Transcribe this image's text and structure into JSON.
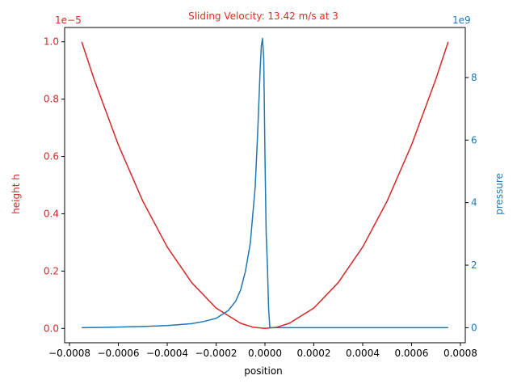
{
  "chart_data": {
    "type": "line",
    "title": "Sliding Velocity: 13.42 m/s at 3",
    "xlabel": "position",
    "ylabel_left": "height h",
    "ylabel_right": "pressure",
    "left_axis_multiplier": "1e−5",
    "right_axis_multiplier": "1e9",
    "xlim": [
      -0.00082,
      0.00082
    ],
    "ylim_left": [
      -0.05,
      1.05
    ],
    "ylim_right": [
      -0.48,
      9.6
    ],
    "x_ticks": [
      -0.0008,
      -0.0006,
      -0.0004,
      -0.0002,
      0.0,
      0.0002,
      0.0004,
      0.0006,
      0.0008
    ],
    "x_tick_labels": [
      "−0.0008",
      "−0.0006",
      "−0.0004",
      "−0.0002",
      "0.0000",
      "0.0002",
      "0.0004",
      "0.0006",
      "0.0008"
    ],
    "y_left_ticks": [
      0.0,
      0.2,
      0.4,
      0.6,
      0.8,
      1.0
    ],
    "y_left_tick_labels": [
      "0.0",
      "0.2",
      "0.4",
      "0.6",
      "0.8",
      "1.0"
    ],
    "y_right_ticks": [
      0,
      2,
      4,
      6,
      8
    ],
    "y_right_tick_labels": [
      "0",
      "2",
      "4",
      "6",
      "8"
    ],
    "colors": {
      "height": "#d62728",
      "pressure": "#1f77b4",
      "axis": "#000000"
    },
    "grid": false,
    "series": [
      {
        "axis": "left",
        "x": [
          -0.00075,
          -0.0007,
          -0.0006,
          -0.0005,
          -0.0004,
          -0.0003,
          -0.0002,
          -0.0001,
          -5e-05,
          0.0,
          5e-05,
          0.0001,
          0.0002,
          0.0003,
          0.0004,
          0.0005,
          0.0006,
          0.0007,
          0.00075
        ],
        "values": [
          1.0,
          0.871,
          0.64,
          0.444,
          0.284,
          0.16,
          0.071,
          0.018,
          0.0044,
          0.0,
          0.0044,
          0.018,
          0.071,
          0.16,
          0.284,
          0.444,
          0.64,
          0.871,
          1.0
        ]
      },
      {
        "axis": "right",
        "x": [
          -0.00075,
          -0.0006,
          -0.0005,
          -0.0004,
          -0.0003,
          -0.00025,
          -0.0002,
          -0.00015,
          -0.00012,
          -0.0001,
          -8e-05,
          -6e-05,
          -4e-05,
          -3e-05,
          -2e-05,
          -1.5e-05,
          -1e-05,
          -5e-06,
          0.0,
          5e-06,
          1e-05,
          1.5e-05,
          2e-05,
          3e-05,
          4e-05,
          6e-05,
          0.0001,
          0.0003,
          0.0005,
          0.00075
        ],
        "values": [
          0.0,
          0.02,
          0.04,
          0.07,
          0.13,
          0.2,
          0.3,
          0.55,
          0.85,
          1.2,
          1.8,
          2.7,
          4.5,
          6.2,
          8.2,
          9.0,
          9.25,
          8.6,
          5.5,
          3.0,
          2.0,
          0.6,
          0.0,
          0.0,
          0.0,
          0.0,
          0.0,
          0.0,
          0.0,
          0.0
        ]
      }
    ]
  }
}
